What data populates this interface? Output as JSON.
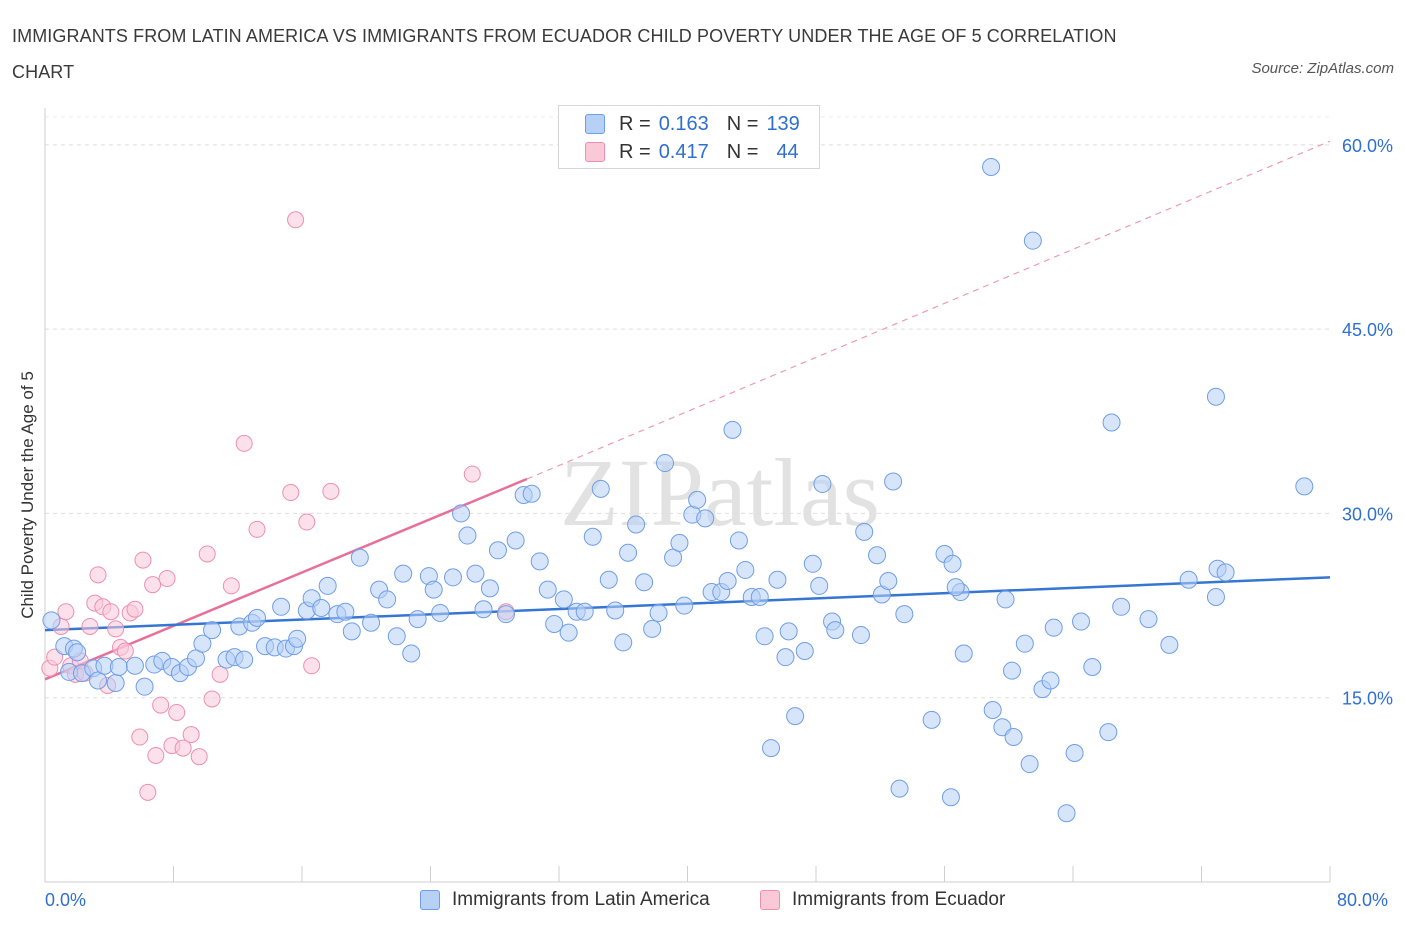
{
  "title": "IMMIGRANTS FROM LATIN AMERICA VS IMMIGRANTS FROM ECUADOR CHILD POVERTY UNDER THE AGE OF 5 CORRELATION CHART",
  "source": "Source: ZipAtlas.com",
  "watermark": "ZIPatlas",
  "legend": {
    "r_label": "R =",
    "n_label": "N =",
    "rows": [
      {
        "r": "0.163",
        "n": "139",
        "fill": "#b7d0f5",
        "stroke": "#6f9ee8"
      },
      {
        "r": "0.417",
        "n": "44",
        "fill": "#f9c9d8",
        "stroke": "#ee8fae"
      }
    ]
  },
  "chart_data": {
    "type": "scatter",
    "ylabel": "Child Poverty Under the Age of 5",
    "xlim": [
      0,
      80
    ],
    "ylim": [
      0,
      63
    ],
    "x_tick_labels": [
      "0.0%",
      "80.0%"
    ],
    "y_ticks": [
      15,
      30,
      45,
      60
    ],
    "y_tick_labels": [
      "15.0%",
      "30.0%",
      "45.0%",
      "60.0%"
    ],
    "grid": true,
    "legend_position": "top-center",
    "series": [
      {
        "name": "Immigrants from Latin America",
        "color": "#5b8fdc",
        "fill": "#b7d0f5",
        "r": 0.163,
        "n": 139,
        "trend": [
          [
            0,
            20.5
          ],
          [
            80,
            24.8
          ]
        ],
        "points": [
          [
            0.4,
            21.3
          ],
          [
            1.2,
            19.2
          ],
          [
            1.5,
            17.1
          ],
          [
            1.8,
            19.0
          ],
          [
            2.0,
            18.7
          ],
          [
            2.3,
            17.0
          ],
          [
            3.0,
            17.4
          ],
          [
            3.3,
            16.4
          ],
          [
            3.7,
            17.6
          ],
          [
            4.4,
            16.2
          ],
          [
            4.6,
            17.5
          ],
          [
            5.6,
            17.6
          ],
          [
            6.2,
            15.9
          ],
          [
            6.8,
            17.7
          ],
          [
            7.3,
            18.0
          ],
          [
            7.9,
            17.5
          ],
          [
            8.4,
            17.0
          ],
          [
            8.9,
            17.5
          ],
          [
            9.4,
            18.2
          ],
          [
            9.8,
            19.4
          ],
          [
            10.4,
            20.5
          ],
          [
            11.3,
            18.1
          ],
          [
            11.8,
            18.3
          ],
          [
            12.1,
            20.8
          ],
          [
            12.4,
            18.1
          ],
          [
            12.9,
            21.1
          ],
          [
            13.2,
            21.5
          ],
          [
            13.7,
            19.2
          ],
          [
            14.3,
            19.1
          ],
          [
            14.7,
            22.4
          ],
          [
            15.0,
            19.0
          ],
          [
            15.5,
            19.2
          ],
          [
            15.7,
            19.8
          ],
          [
            16.3,
            22.1
          ],
          [
            16.6,
            23.1
          ],
          [
            17.2,
            22.3
          ],
          [
            17.6,
            24.1
          ],
          [
            18.2,
            21.8
          ],
          [
            18.7,
            22.0
          ],
          [
            19.1,
            20.4
          ],
          [
            19.6,
            26.4
          ],
          [
            20.3,
            21.1
          ],
          [
            20.8,
            23.8
          ],
          [
            21.3,
            23.0
          ],
          [
            21.9,
            20.0
          ],
          [
            22.3,
            25.1
          ],
          [
            22.8,
            18.6
          ],
          [
            23.2,
            21.4
          ],
          [
            23.9,
            24.9
          ],
          [
            24.2,
            23.8
          ],
          [
            24.6,
            21.9
          ],
          [
            25.4,
            24.8
          ],
          [
            25.9,
            30.0
          ],
          [
            26.3,
            28.2
          ],
          [
            26.8,
            25.1
          ],
          [
            27.3,
            22.2
          ],
          [
            27.7,
            23.9
          ],
          [
            28.2,
            27.0
          ],
          [
            28.7,
            21.8
          ],
          [
            29.3,
            27.8
          ],
          [
            29.8,
            31.5
          ],
          [
            30.3,
            31.6
          ],
          [
            30.8,
            26.1
          ],
          [
            31.3,
            23.8
          ],
          [
            31.7,
            21.0
          ],
          [
            32.3,
            23.0
          ],
          [
            32.6,
            20.3
          ],
          [
            33.1,
            22.0
          ],
          [
            33.6,
            22.0
          ],
          [
            34.1,
            28.1
          ],
          [
            34.6,
            32.0
          ],
          [
            35.1,
            24.6
          ],
          [
            35.5,
            22.1
          ],
          [
            36.0,
            19.5
          ],
          [
            36.3,
            26.8
          ],
          [
            36.8,
            29.1
          ],
          [
            37.3,
            24.4
          ],
          [
            37.8,
            20.6
          ],
          [
            38.2,
            21.9
          ],
          [
            38.6,
            34.1
          ],
          [
            39.1,
            26.4
          ],
          [
            39.5,
            27.6
          ],
          [
            39.8,
            22.5
          ],
          [
            40.3,
            29.9
          ],
          [
            40.6,
            31.1
          ],
          [
            41.1,
            29.6
          ],
          [
            41.5,
            23.6
          ],
          [
            42.1,
            23.6
          ],
          [
            42.5,
            24.5
          ],
          [
            42.8,
            36.8
          ],
          [
            43.2,
            27.8
          ],
          [
            43.6,
            25.4
          ],
          [
            44.0,
            23.2
          ],
          [
            44.5,
            23.2
          ],
          [
            44.8,
            20.0
          ],
          [
            45.6,
            24.6
          ],
          [
            46.1,
            18.3
          ],
          [
            46.3,
            20.4
          ],
          [
            46.7,
            13.5
          ],
          [
            47.3,
            18.8
          ],
          [
            47.8,
            25.9
          ],
          [
            48.2,
            24.1
          ],
          [
            48.4,
            32.4
          ],
          [
            49.0,
            21.2
          ],
          [
            49.2,
            20.5
          ],
          [
            51.0,
            28.5
          ],
          [
            51.8,
            26.6
          ],
          [
            52.1,
            23.4
          ],
          [
            52.5,
            24.5
          ],
          [
            52.8,
            32.6
          ],
          [
            56.0,
            26.7
          ],
          [
            56.5,
            25.9
          ],
          [
            57.0,
            23.6
          ],
          [
            57.2,
            18.6
          ],
          [
            59.0,
            14.0
          ],
          [
            59.6,
            12.6
          ],
          [
            60.3,
            11.8
          ],
          [
            61.3,
            9.6
          ],
          [
            62.1,
            15.7
          ],
          [
            62.8,
            20.7
          ],
          [
            64.1,
            10.5
          ],
          [
            64.5,
            21.2
          ],
          [
            65.2,
            17.5
          ],
          [
            66.2,
            12.2
          ],
          [
            67.0,
            22.4
          ],
          [
            68.7,
            21.4
          ],
          [
            70.0,
            19.3
          ],
          [
            73.0,
            25.5
          ],
          [
            73.5,
            25.2
          ],
          [
            56.4,
            6.9
          ],
          [
            45.2,
            10.9
          ],
          [
            55.2,
            13.2
          ],
          [
            53.5,
            21.8
          ],
          [
            50.8,
            20.1
          ],
          [
            56.7,
            24.0
          ],
          [
            60.2,
            17.2
          ],
          [
            59.8,
            23.0
          ],
          [
            61.0,
            19.4
          ],
          [
            63.6,
            5.6
          ],
          [
            62.6,
            16.4
          ],
          [
            71.2,
            24.6
          ],
          [
            72.9,
            23.2
          ],
          [
            78.4,
            32.2
          ]
        ],
        "outliers": [
          [
            58.9,
            58.2
          ],
          [
            61.5,
            52.2
          ],
          [
            72.9,
            39.5
          ],
          [
            66.4,
            37.4
          ],
          [
            53.2,
            7.6
          ]
        ]
      },
      {
        "name": "Immigrants from Ecuador",
        "color": "#e86f98",
        "fill": "#f9c9d8",
        "r": 0.417,
        "n": 44,
        "trend_solid": [
          [
            0,
            16.5
          ],
          [
            30,
            32.8
          ]
        ],
        "trend_dashed": [
          [
            30,
            32.8
          ],
          [
            80,
            60.3
          ]
        ],
        "points": [
          [
            0.3,
            17.4
          ],
          [
            0.6,
            18.3
          ],
          [
            1.0,
            20.8
          ],
          [
            1.3,
            22.0
          ],
          [
            1.6,
            17.6
          ],
          [
            1.9,
            16.9
          ],
          [
            2.2,
            18.0
          ],
          [
            2.5,
            17.0
          ],
          [
            2.8,
            20.8
          ],
          [
            3.1,
            22.7
          ],
          [
            3.3,
            25.0
          ],
          [
            3.6,
            22.4
          ],
          [
            3.9,
            16.0
          ],
          [
            4.1,
            22.0
          ],
          [
            4.4,
            20.6
          ],
          [
            4.7,
            19.1
          ],
          [
            5.0,
            18.8
          ],
          [
            5.3,
            21.9
          ],
          [
            5.6,
            22.2
          ],
          [
            5.9,
            11.8
          ],
          [
            6.1,
            26.2
          ],
          [
            6.4,
            7.3
          ],
          [
            6.7,
            24.2
          ],
          [
            6.9,
            10.3
          ],
          [
            7.2,
            14.4
          ],
          [
            7.6,
            24.7
          ],
          [
            7.9,
            11.1
          ],
          [
            8.2,
            13.8
          ],
          [
            8.6,
            10.9
          ],
          [
            9.1,
            12.0
          ],
          [
            9.6,
            10.2
          ],
          [
            10.1,
            26.7
          ],
          [
            10.4,
            14.9
          ],
          [
            10.9,
            16.9
          ],
          [
            11.6,
            24.1
          ],
          [
            12.4,
            35.7
          ],
          [
            13.2,
            28.7
          ],
          [
            15.3,
            31.7
          ],
          [
            15.6,
            53.9
          ],
          [
            16.3,
            29.3
          ],
          [
            16.6,
            17.6
          ],
          [
            17.8,
            31.8
          ],
          [
            26.6,
            33.2
          ],
          [
            28.7,
            22.0
          ]
        ]
      }
    ]
  },
  "bottom_legend": [
    "Immigrants from Latin America",
    "Immigrants from Ecuador"
  ]
}
